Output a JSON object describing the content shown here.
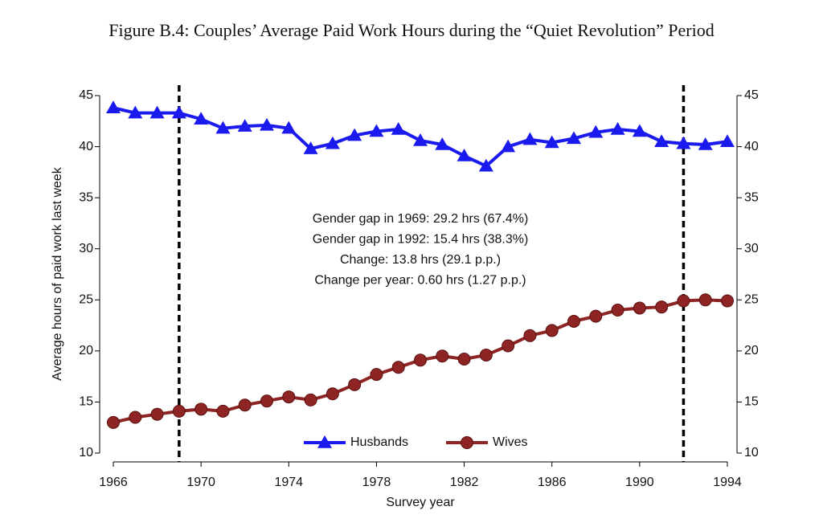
{
  "chart_data": {
    "type": "line",
    "title": "Figure B.4: Couples’ Average Paid Work Hours during the “Quiet Revolution” Period",
    "x_label": "Survey year",
    "y_label": "Average hours of paid work last week",
    "x": [
      1966,
      1967,
      1968,
      1969,
      1970,
      1971,
      1972,
      1973,
      1974,
      1975,
      1976,
      1977,
      1978,
      1979,
      1980,
      1981,
      1982,
      1983,
      1984,
      1985,
      1986,
      1987,
      1988,
      1989,
      1990,
      1991,
      1992,
      1993,
      1994
    ],
    "series": [
      {
        "name": "Husbands",
        "color": "#1a1aee",
        "marker": "triangle",
        "values": [
          43.8,
          43.3,
          43.3,
          43.3,
          42.7,
          41.8,
          42.0,
          42.1,
          41.8,
          39.8,
          40.3,
          41.1,
          41.5,
          41.7,
          40.6,
          40.2,
          39.1,
          38.1,
          40.0,
          40.7,
          40.4,
          40.8,
          41.4,
          41.7,
          41.5,
          40.5,
          40.3,
          40.2,
          40.5
        ]
      },
      {
        "name": "Wives",
        "color": "#8e2424",
        "marker": "circle",
        "values": [
          13.0,
          13.5,
          13.8,
          14.1,
          14.3,
          14.1,
          14.7,
          15.1,
          15.5,
          15.2,
          15.8,
          16.7,
          17.7,
          18.4,
          19.1,
          19.5,
          19.2,
          19.6,
          20.5,
          21.5,
          22.0,
          22.9,
          23.4,
          24.0,
          24.2,
          24.3,
          24.9,
          25.0,
          24.9
        ]
      }
    ],
    "xlim": [
      1966,
      1994
    ],
    "xticks": [
      1966,
      1970,
      1974,
      1978,
      1982,
      1986,
      1990,
      1994
    ],
    "ylim": [
      10,
      45
    ],
    "yticks": [
      10,
      15,
      20,
      25,
      30,
      35,
      40,
      45
    ],
    "mirror_y_axis": true,
    "reference_lines": [
      1969,
      1992
    ],
    "annotation": [
      "Gender gap in 1969: 29.2 hrs (67.4%)",
      "Gender gap in 1992: 15.4 hrs (38.3%)",
      "Change: 13.8 hrs (29.1 p.p.)",
      "Change per year: 0.60 hrs (1.27 p.p.)"
    ],
    "legend": "bottom",
    "grid": false
  }
}
